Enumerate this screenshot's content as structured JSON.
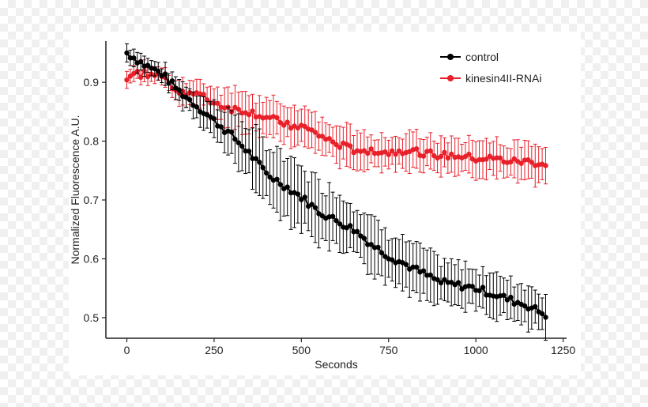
{
  "chart_data": {
    "type": "line",
    "xlabel": "Seconds",
    "ylabel": "Normalized Fluorescence A.U.",
    "xlim": [
      -60,
      1260
    ],
    "ylim": [
      0.465,
      0.97
    ],
    "xticks": [
      0,
      250,
      500,
      750,
      1000,
      1250
    ],
    "xtick_labels": [
      "0",
      "250",
      "500",
      "750",
      "1000",
      "1250"
    ],
    "yticks": [
      0.5,
      0.6,
      0.7,
      0.8,
      0.9
    ],
    "ytick_labels": [
      "0.5",
      "0.6",
      "0.7",
      "0.8",
      "0.9"
    ],
    "grid": false,
    "legend_position": "top-right",
    "error_bars": true,
    "series": [
      {
        "name": "control",
        "color": "#000000",
        "x": [
          0,
          50,
          100,
          150,
          200,
          250,
          300,
          350,
          400,
          450,
          500,
          550,
          600,
          650,
          700,
          750,
          800,
          850,
          900,
          950,
          1000,
          1050,
          1100,
          1150,
          1200
        ],
        "y": [
          0.95,
          0.93,
          0.915,
          0.885,
          0.86,
          0.835,
          0.81,
          0.78,
          0.745,
          0.725,
          0.705,
          0.68,
          0.665,
          0.65,
          0.625,
          0.605,
          0.59,
          0.575,
          0.56,
          0.555,
          0.55,
          0.54,
          0.53,
          0.52,
          0.505
        ],
        "err": [
          0.015,
          0.015,
          0.015,
          0.02,
          0.02,
          0.03,
          0.04,
          0.045,
          0.05,
          0.05,
          0.05,
          0.05,
          0.05,
          0.045,
          0.045,
          0.04,
          0.04,
          0.04,
          0.035,
          0.035,
          0.035,
          0.035,
          0.035,
          0.035,
          0.035
        ]
      },
      {
        "name": "kinesin4II-RNAi",
        "color": "#e8202a",
        "x": [
          0,
          50,
          100,
          150,
          200,
          250,
          300,
          350,
          400,
          450,
          500,
          550,
          600,
          650,
          700,
          750,
          800,
          850,
          900,
          950,
          1000,
          1050,
          1100,
          1150,
          1200
        ],
        "y": [
          0.91,
          0.915,
          0.91,
          0.885,
          0.88,
          0.865,
          0.855,
          0.85,
          0.84,
          0.83,
          0.825,
          0.81,
          0.795,
          0.785,
          0.785,
          0.78,
          0.785,
          0.78,
          0.775,
          0.775,
          0.77,
          0.77,
          0.765,
          0.765,
          0.76
        ],
        "err": [
          0.015,
          0.015,
          0.015,
          0.02,
          0.02,
          0.025,
          0.03,
          0.03,
          0.03,
          0.03,
          0.03,
          0.03,
          0.03,
          0.03,
          0.03,
          0.03,
          0.03,
          0.03,
          0.03,
          0.03,
          0.03,
          0.03,
          0.03,
          0.03,
          0.03
        ]
      }
    ]
  }
}
